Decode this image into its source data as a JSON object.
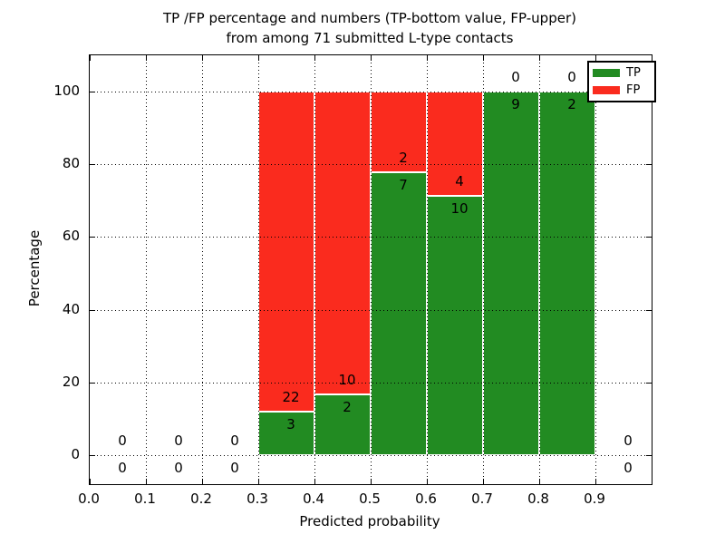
{
  "title": {
    "line1": "TP /FP percentage and numbers (TP-bottom value, FP-upper)",
    "line2": "from among 71 submitted L-type contacts"
  },
  "axes": {
    "xlabel": "Predicted probability",
    "ylabel": "Percentage",
    "x_tick_labels": [
      "0.0",
      "0.1",
      "0.2",
      "0.3",
      "0.4",
      "0.5",
      "0.6",
      "0.7",
      "0.8",
      "0.9"
    ],
    "y_tick_labels": [
      "0",
      "20",
      "40",
      "60",
      "80",
      "100"
    ]
  },
  "legend": {
    "items": [
      {
        "label": "TP",
        "color": "#228b22"
      },
      {
        "label": "FP",
        "color": "#fa2b1e"
      }
    ]
  },
  "colors": {
    "tp": "#228b22",
    "fp": "#fa2b1e",
    "grid": "#000000",
    "text": "#000000",
    "background": "#ffffff"
  },
  "chart_data": {
    "type": "bar",
    "stacked": true,
    "normalized_to_percent": true,
    "title": "TP /FP percentage and numbers (TP-bottom value, FP-upper)\nfrom among 71 submitted L-type contacts",
    "xlabel": "Predicted probability",
    "ylabel": "Percentage",
    "xlim": [
      0.0,
      1.0
    ],
    "ylim": [
      -8,
      110
    ],
    "grid": "dotted",
    "legend_position": "upper right",
    "total_contacts": 71,
    "series": [
      {
        "name": "TP",
        "color": "#228b22",
        "position": "bottom"
      },
      {
        "name": "FP",
        "color": "#fa2b1e",
        "position": "top"
      }
    ],
    "bins": [
      {
        "range": [
          0.0,
          0.1
        ],
        "tp": 0,
        "fp": 0,
        "tp_pct": 0,
        "fp_pct": 0
      },
      {
        "range": [
          0.1,
          0.2
        ],
        "tp": 0,
        "fp": 0,
        "tp_pct": 0,
        "fp_pct": 0
      },
      {
        "range": [
          0.2,
          0.3
        ],
        "tp": 0,
        "fp": 0,
        "tp_pct": 0,
        "fp_pct": 0
      },
      {
        "range": [
          0.3,
          0.4
        ],
        "tp": 3,
        "fp": 22,
        "tp_pct": 12.0,
        "fp_pct": 88.0
      },
      {
        "range": [
          0.4,
          0.5
        ],
        "tp": 2,
        "fp": 10,
        "tp_pct": 16.67,
        "fp_pct": 83.33
      },
      {
        "range": [
          0.5,
          0.6
        ],
        "tp": 7,
        "fp": 2,
        "tp_pct": 77.78,
        "fp_pct": 22.22
      },
      {
        "range": [
          0.6,
          0.7
        ],
        "tp": 10,
        "fp": 4,
        "tp_pct": 71.43,
        "fp_pct": 28.57
      },
      {
        "range": [
          0.7,
          0.8
        ],
        "tp": 9,
        "fp": 0,
        "tp_pct": 100.0,
        "fp_pct": 0
      },
      {
        "range": [
          0.8,
          0.9
        ],
        "tp": 2,
        "fp": 0,
        "tp_pct": 100.0,
        "fp_pct": 0
      },
      {
        "range": [
          0.9,
          1.0
        ],
        "tp": 0,
        "fp": 0,
        "tp_pct": 0,
        "fp_pct": 0
      }
    ],
    "label_convention": "TP count printed below segment boundary, FP count printed above it"
  }
}
